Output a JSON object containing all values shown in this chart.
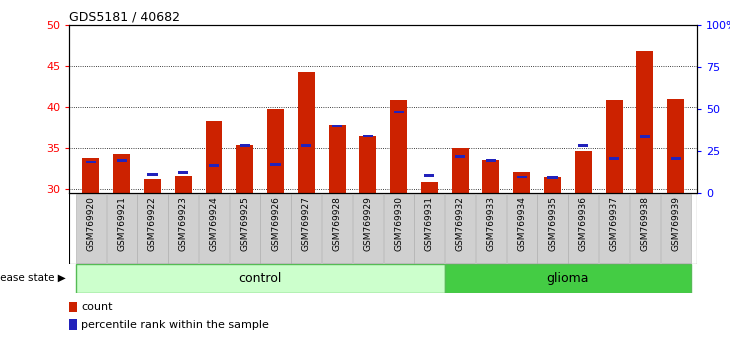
{
  "title": "GDS5181 / 40682",
  "samples": [
    "GSM769920",
    "GSM769921",
    "GSM769922",
    "GSM769923",
    "GSM769924",
    "GSM769925",
    "GSM769926",
    "GSM769927",
    "GSM769928",
    "GSM769929",
    "GSM769930",
    "GSM769931",
    "GSM769932",
    "GSM769933",
    "GSM769934",
    "GSM769935",
    "GSM769936",
    "GSM769937",
    "GSM769938",
    "GSM769939"
  ],
  "count_values": [
    33.8,
    34.2,
    31.2,
    31.6,
    38.3,
    35.3,
    39.7,
    44.3,
    37.8,
    36.4,
    40.8,
    30.8,
    35.0,
    33.5,
    32.0,
    31.4,
    34.6,
    40.8,
    46.8,
    41.0
  ],
  "percentile_values": [
    33.1,
    33.3,
    31.6,
    31.8,
    32.7,
    35.1,
    32.8,
    35.1,
    37.5,
    36.3,
    39.2,
    31.5,
    33.8,
    33.3,
    31.3,
    31.2,
    35.1,
    33.5,
    36.2,
    33.5
  ],
  "control_count": 12,
  "glioma_count": 8,
  "ylim_left": [
    29.5,
    50
  ],
  "ylim_right": [
    0,
    100
  ],
  "yticks_left": [
    30,
    35,
    40,
    45,
    50
  ],
  "yticks_right": [
    0,
    25,
    50,
    75,
    100
  ],
  "bar_color": "#cc2200",
  "percentile_color": "#2222bb",
  "control_light": "#ccffcc",
  "glioma_green": "#44cc44",
  "control_label": "control",
  "glioma_label": "glioma",
  "disease_state_label": "disease state",
  "legend_count": "count",
  "legend_pct": "percentile rank within the sample"
}
